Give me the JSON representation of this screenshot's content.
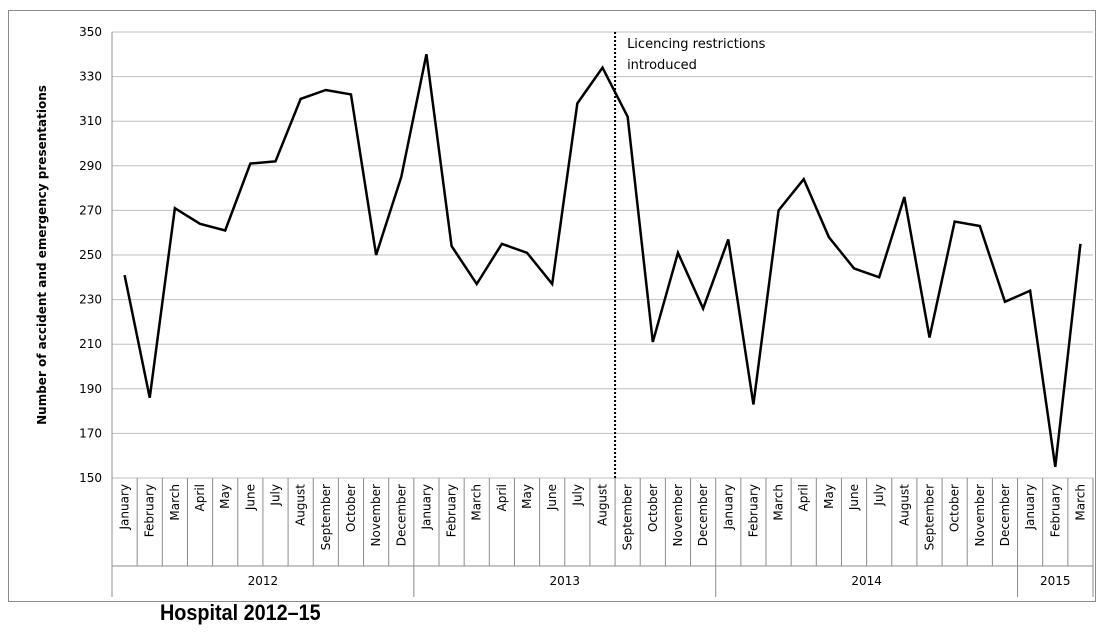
{
  "caption": "Hospital 2012–15",
  "chart_data": {
    "type": "line",
    "title": "",
    "ylabel": "Number of accident and emergency presentations",
    "xlabel": "",
    "ylim": [
      150,
      350
    ],
    "yticks": [
      150,
      170,
      190,
      210,
      230,
      250,
      270,
      290,
      310,
      330,
      350
    ],
    "grid": true,
    "annotation": {
      "text_lines": [
        "Licencing restrictions",
        "introduced"
      ],
      "after_index": 20
    },
    "year_groups": [
      {
        "label": "2012",
        "count": 12
      },
      {
        "label": "2013",
        "count": 12
      },
      {
        "label": "2014",
        "count": 12
      },
      {
        "label": "2015",
        "count": 3
      }
    ],
    "categories": [
      "January",
      "February",
      "March",
      "April",
      "May",
      "June",
      "July",
      "August",
      "September",
      "October",
      "November",
      "December",
      "January",
      "February",
      "March",
      "April",
      "May",
      "June",
      "July",
      "August",
      "September",
      "October",
      "November",
      "December",
      "January",
      "February",
      "March",
      "April",
      "May",
      "June",
      "July",
      "August",
      "September",
      "October",
      "November",
      "December",
      "January",
      "February",
      "March"
    ],
    "series": [
      {
        "values": [
          241,
          186,
          271,
          264,
          261,
          291,
          292,
          320,
          324,
          322,
          250,
          285,
          340,
          254,
          237,
          255,
          251,
          237,
          318,
          334,
          312,
          211,
          251,
          226,
          257,
          183,
          270,
          284,
          258,
          244,
          240,
          276,
          213,
          265,
          263,
          229,
          234,
          155,
          255
        ],
        "color": "#000000"
      }
    ],
    "colors": {
      "line": "#000000",
      "grid": "#bfbfbf",
      "axis": "#8c8c8c",
      "annotation_line": "#000000"
    }
  }
}
